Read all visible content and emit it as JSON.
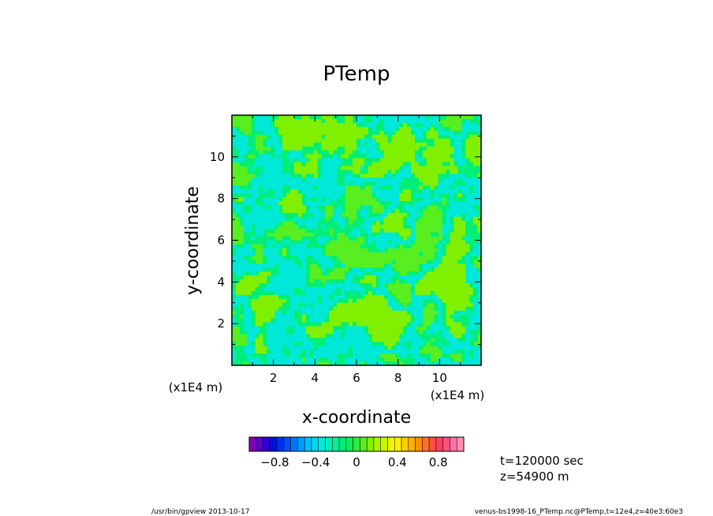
{
  "chart_data": {
    "type": "heatmap",
    "title": "PTemp",
    "xlabel": "x-coordinate",
    "ylabel": "y-coordinate",
    "x_unit_label": "(x1E4 m)",
    "y_unit_label": "(x1E4 m)",
    "xlim": [
      0,
      12
    ],
    "ylim": [
      0,
      12
    ],
    "x_ticks": [
      2,
      4,
      6,
      8,
      10
    ],
    "y_ticks": [
      2,
      4,
      6,
      8,
      10
    ],
    "x_tick_labels": [
      "2",
      "4",
      "6",
      "8",
      "10"
    ],
    "y_tick_labels": [
      "2",
      "4",
      "6",
      "8",
      "10"
    ],
    "colorbar": {
      "range": [
        -1.05,
        1.05
      ],
      "tick_values": [
        -0.8,
        -0.4,
        0,
        0.4,
        0.8
      ],
      "tick_labels": [
        "−0.8",
        "−0.4",
        "0",
        "0.4",
        "0.8"
      ],
      "colors": [
        "#7f00b0",
        "#5a00c8",
        "#2a00d8",
        "#0010e0",
        "#0030ea",
        "#0052f2",
        "#0076f8",
        "#009cff",
        "#00c0ff",
        "#00d8f0",
        "#00e8d8",
        "#00f0b8",
        "#00f098",
        "#00ee78",
        "#10ec58",
        "#30ea40",
        "#58ee20",
        "#80f000",
        "#a8f400",
        "#ccf600",
        "#eef400",
        "#fff000",
        "#ffd000",
        "#ffb000",
        "#ff9000",
        "#ff7020",
        "#ff5040",
        "#ff4060",
        "#ff5080",
        "#ff70a0",
        "#ff90b0"
      ]
    },
    "field_range_observed": [
      -0.15,
      0.1
    ],
    "field_colors": {
      "low": "#00e8d8",
      "mid_low": "#00ee78",
      "mid": "#58ee20",
      "high": "#80f000"
    },
    "grid": false,
    "legend": "colorbar-bottom"
  },
  "annotations": {
    "time": "t=120000 sec",
    "height": "z=54900 m",
    "footer_left": "/usr/bin/gpview   2013-10-17",
    "footer_right": "venus-bs1998-16_PTemp.nc@PTemp,t=12e4,z=40e3:60e3"
  }
}
